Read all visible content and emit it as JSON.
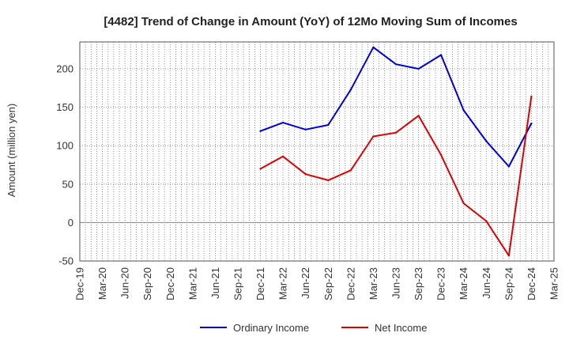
{
  "chart_data": {
    "type": "line",
    "title": "[4482]  Trend of Change in Amount (YoY) of 12Mo Moving Sum of Incomes",
    "ylabel": "Amount (million yen)",
    "xlabel": "",
    "ylim": [
      -50,
      235
    ],
    "yticks": [
      -50,
      0,
      50,
      100,
      150,
      200
    ],
    "categories": [
      "Dec-19",
      "Mar-20",
      "Jun-20",
      "Sep-20",
      "Dec-20",
      "Mar-21",
      "Jun-21",
      "Sep-21",
      "Dec-21",
      "Mar-22",
      "Jun-22",
      "Sep-22",
      "Dec-22",
      "Mar-23",
      "Jun-23",
      "Sep-23",
      "Dec-23",
      "Mar-24",
      "Jun-24",
      "Sep-24",
      "Dec-24",
      "Mar-25"
    ],
    "grid": true,
    "legend_position": "bottom",
    "series": [
      {
        "name": "Ordinary Income",
        "color": "#0000dd",
        "values": [
          null,
          null,
          null,
          null,
          null,
          null,
          null,
          null,
          119,
          130,
          121,
          127,
          173,
          228,
          206,
          200,
          218,
          146,
          106,
          73,
          129,
          null
        ]
      },
      {
        "name": "Net Income",
        "color": "#dd0000",
        "values": [
          null,
          null,
          null,
          null,
          null,
          null,
          null,
          null,
          70,
          86,
          63,
          55,
          68,
          112,
          117,
          139,
          88,
          25,
          2,
          -43,
          164,
          null
        ]
      }
    ]
  }
}
